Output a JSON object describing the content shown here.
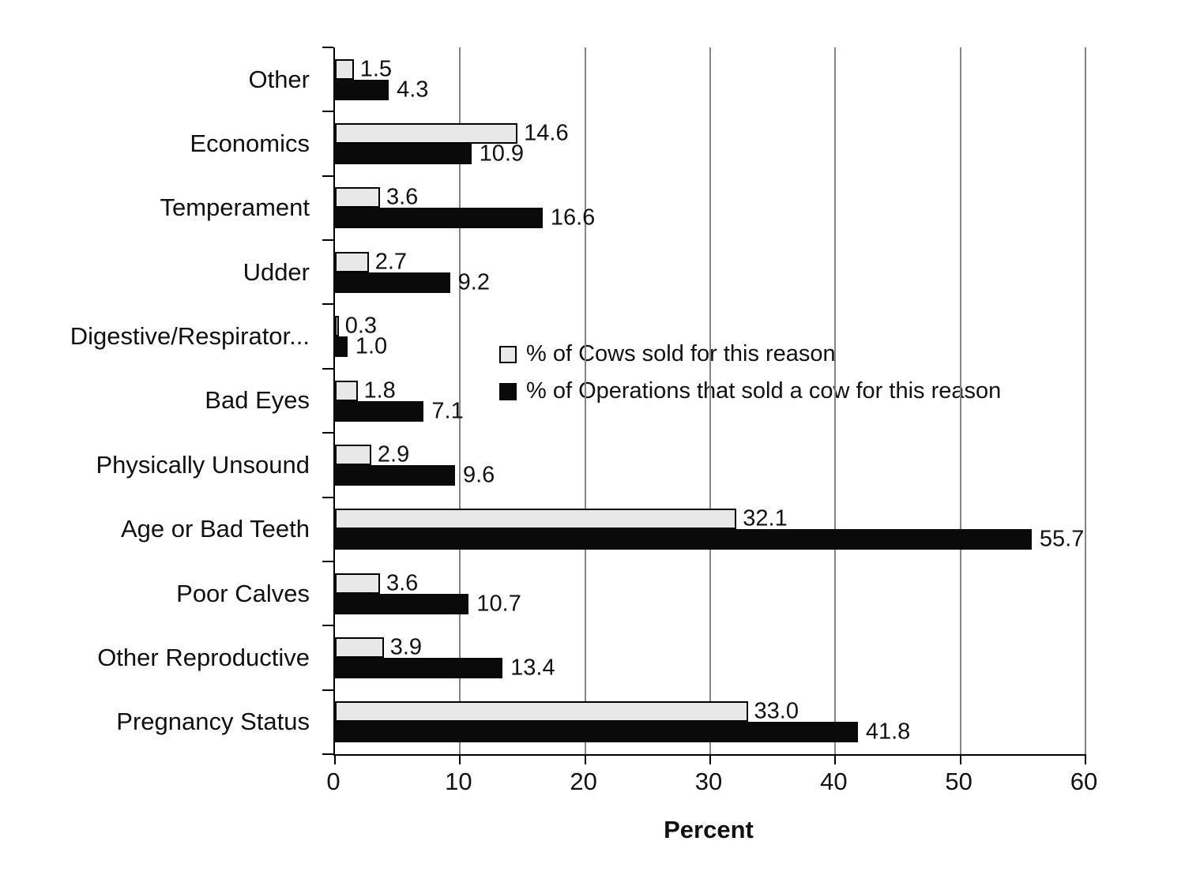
{
  "chart_data": {
    "type": "bar",
    "orientation": "horizontal",
    "title": "",
    "xlabel": "Percent",
    "xlim": [
      0,
      60
    ],
    "xticks": [
      0,
      10,
      20,
      30,
      40,
      50,
      60
    ],
    "grid": "vertical-on",
    "legend_position": "inside-middle-right",
    "categories": [
      "Other",
      "Economics",
      "Temperament",
      "Udder",
      "Digestive/Respirator...",
      "Bad Eyes",
      "Physically Unsound",
      "Age or Bad Teeth",
      "Poor Calves",
      "Other Reproductive",
      "Pregnancy Status"
    ],
    "series": [
      {
        "name": "% of Cows sold for this reason",
        "color": "#e8e8e8",
        "values": [
          1.5,
          14.6,
          3.6,
          2.7,
          0.3,
          1.8,
          2.9,
          32.1,
          3.6,
          3.9,
          33.0
        ]
      },
      {
        "name": "% of Operations that sold a cow for this reason",
        "color": "#0a0a0a",
        "values": [
          4.3,
          10.9,
          16.6,
          9.2,
          1.0,
          7.1,
          9.6,
          55.7,
          10.7,
          13.4,
          41.8
        ]
      }
    ],
    "colors": {
      "gridline": "#858585",
      "axis": "#000000",
      "background": "#ffffff",
      "text": "#111111"
    }
  }
}
